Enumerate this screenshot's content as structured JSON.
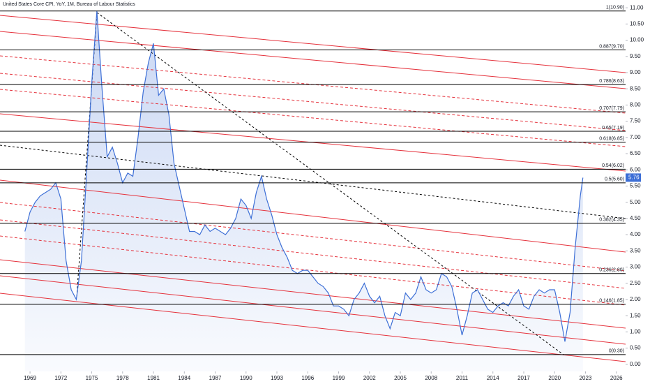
{
  "chart_data": {
    "type": "line",
    "title": "United States Core CPI, YoY, 1M, Bureau of Labour Statistics",
    "x": [
      1968.5,
      1969,
      1969.5,
      1970,
      1970.5,
      1971,
      1971.5,
      1972,
      1972.5,
      1973,
      1973.5,
      1974,
      1974.5,
      1975,
      1975.5,
      1976,
      1976.5,
      1977,
      1977.5,
      1978,
      1978.5,
      1979,
      1979.5,
      1980,
      1980.5,
      1981,
      1981.5,
      1982,
      1982.5,
      1983,
      1983.5,
      1984,
      1984.5,
      1985,
      1985.5,
      1986,
      1986.5,
      1987,
      1987.5,
      1988,
      1988.5,
      1989,
      1989.5,
      1990,
      1990.5,
      1991,
      1991.5,
      1992,
      1992.5,
      1993,
      1993.5,
      1994,
      1994.5,
      1995,
      1995.5,
      1996,
      1996.5,
      1997,
      1997.5,
      1998,
      1998.5,
      1999,
      1999.5,
      2000,
      2000.5,
      2001,
      2001.5,
      2002,
      2002.5,
      2003,
      2003.5,
      2004,
      2004.5,
      2005,
      2005.5,
      2006,
      2006.5,
      2007,
      2007.5,
      2008,
      2008.5,
      2009,
      2009.5,
      2010,
      2010.5,
      2011,
      2011.5,
      2012,
      2012.5,
      2013,
      2013.5,
      2014,
      2014.5,
      2015,
      2015.5,
      2016,
      2016.5,
      2017,
      2017.5,
      2018,
      2018.5,
      2019,
      2019.5,
      2020,
      2020.5,
      2021,
      2021.5,
      2022,
      2022.5,
      2022.75
    ],
    "series": [
      {
        "name": "Core CPI YoY",
        "color": "#3d6fd6",
        "values": [
          4.1,
          4.7,
          5.0,
          5.2,
          5.3,
          5.4,
          5.6,
          5.1,
          3.2,
          2.3,
          2.0,
          3.2,
          5.9,
          8.7,
          10.9,
          8.5,
          6.4,
          6.7,
          6.2,
          5.6,
          5.9,
          5.8,
          7.0,
          8.4,
          9.3,
          9.9,
          8.3,
          8.5,
          7.7,
          6.2,
          5.5,
          4.8,
          4.1,
          4.1,
          4.0,
          4.3,
          4.1,
          4.2,
          4.1,
          4.0,
          4.2,
          4.5,
          5.1,
          4.9,
          4.5,
          5.3,
          5.8,
          5.1,
          4.6,
          4.0,
          3.6,
          3.3,
          2.9,
          2.8,
          2.9,
          2.9,
          2.7,
          2.5,
          2.4,
          2.2,
          1.8,
          1.8,
          1.7,
          1.5,
          2.0,
          2.2,
          2.5,
          2.1,
          1.9,
          2.1,
          1.5,
          1.1,
          1.6,
          1.5,
          2.2,
          2.0,
          2.2,
          2.7,
          2.3,
          2.2,
          2.3,
          2.8,
          2.7,
          2.4,
          1.7,
          0.9,
          1.5,
          2.2,
          2.3,
          2.0,
          1.7,
          1.6,
          1.8,
          1.9,
          1.8,
          2.1,
          2.3,
          1.8,
          1.7,
          2.1,
          2.3,
          2.2,
          2.3,
          2.3,
          1.6,
          0.7,
          1.6,
          3.6,
          5.2,
          5.76
        ]
      }
    ],
    "last_value": 5.76,
    "xlim": [
      1966.08,
      2026.9
    ],
    "xticks": [
      1969,
      1972,
      1975,
      1978,
      1981,
      1984,
      1987,
      1990,
      1993,
      1996,
      1999,
      2002,
      2005,
      2008,
      2011,
      2014,
      2017,
      2020,
      2023,
      2026
    ],
    "ylim": [
      -0.22,
      11.24
    ],
    "yticks": [
      {
        "value": 0,
        "label": "0.00"
      },
      {
        "value": 0.5,
        "label": "0.50"
      },
      {
        "value": 1,
        "label": "1.00"
      },
      {
        "value": 1.5,
        "label": "1.50"
      },
      {
        "value": 2,
        "label": "2.00"
      },
      {
        "value": 2.5,
        "label": "2.50"
      },
      {
        "value": 3,
        "label": "3.00"
      },
      {
        "value": 3.5,
        "label": "3.50"
      },
      {
        "value": 4,
        "label": "4.00"
      },
      {
        "value": 4.5,
        "label": "4.50"
      },
      {
        "value": 5,
        "label": "5.00"
      },
      {
        "value": 5.5,
        "label": "5.50"
      },
      {
        "value": 6,
        "label": "6.00"
      },
      {
        "value": 6.5,
        "label": "6.50"
      },
      {
        "value": 7,
        "label": "7.00"
      },
      {
        "value": 7.5,
        "label": "7.50"
      },
      {
        "value": 8,
        "label": "8.00"
      },
      {
        "value": 8.5,
        "label": "8.50"
      },
      {
        "value": 9,
        "label": "9.00"
      },
      {
        "value": 9.5,
        "label": "9.50"
      },
      {
        "value": 10,
        "label": "10.00"
      },
      {
        "value": 10.5,
        "label": "10.50"
      },
      {
        "value": 11,
        "label": "11.00"
      }
    ],
    "levels": [
      {
        "value": 10.9,
        "label": "1(10.90)"
      },
      {
        "value": 9.7,
        "label": "0.887(9.70)"
      },
      {
        "value": 8.63,
        "label": "0.786(8.63)"
      },
      {
        "value": 7.79,
        "label": "0.707(7.79)"
      },
      {
        "value": 7.19,
        "label": "0.65(7.19)"
      },
      {
        "value": 6.85,
        "label": "0.618(6.85)"
      },
      {
        "value": 6.02,
        "label": "0.54(6.02)"
      },
      {
        "value": 5.6,
        "label": "0.5(5.60)"
      },
      {
        "value": 4.35,
        "label": "0.382(4.35)"
      },
      {
        "value": 2.8,
        "label": "0.236(2.80)"
      },
      {
        "value": 1.85,
        "label": "0.146(1.85)"
      },
      {
        "value": 0.3,
        "label": "0(0.30)"
      }
    ]
  }
}
